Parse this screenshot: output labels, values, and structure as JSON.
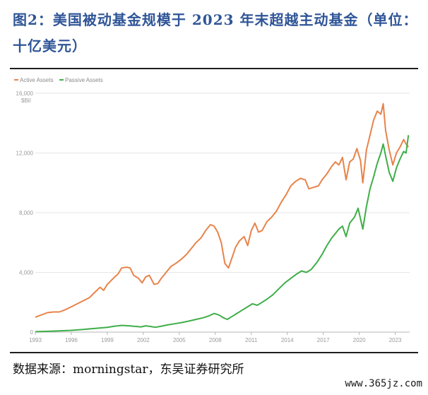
{
  "header": {
    "title": "图2：美国被动基金规模于 2023 年末超越主动基金（单位：十亿美元）"
  },
  "footer": {
    "source": "数据来源：morningstar，东吴证券研究所",
    "watermark": "www.365jz.com"
  },
  "colors": {
    "active": "#e8834a",
    "passive": "#3fae49",
    "title": "#2f5597",
    "axis": "#9a9a9a"
  },
  "chart_data": {
    "type": "line",
    "unit_label": "$Bil",
    "ylim": [
      0,
      16000
    ],
    "yticks": [
      0,
      4000,
      8000,
      12000,
      16000
    ],
    "ytick_labels": [
      "0",
      "4,000",
      "8,000",
      "12,000",
      "16,000"
    ],
    "xlim": [
      1993,
      2024.2
    ],
    "xticks": [
      1993,
      1996,
      1999,
      2002,
      2005,
      2008,
      2011,
      2014,
      2017,
      2020,
      2023
    ],
    "grid": true,
    "legend_position": "top-left",
    "series": [
      {
        "name": "Active Assets",
        "color": "#e8834a",
        "points": [
          [
            1993.0,
            1000
          ],
          [
            1993.5,
            1150
          ],
          [
            1994.0,
            1300
          ],
          [
            1994.5,
            1350
          ],
          [
            1995.0,
            1350
          ],
          [
            1995.5,
            1500
          ],
          [
            1996.0,
            1700
          ],
          [
            1996.5,
            1900
          ],
          [
            1997.0,
            2100
          ],
          [
            1997.5,
            2300
          ],
          [
            1998.0,
            2700
          ],
          [
            1998.4,
            3000
          ],
          [
            1998.7,
            2800
          ],
          [
            1999.0,
            3200
          ],
          [
            1999.5,
            3600
          ],
          [
            1999.9,
            3900
          ],
          [
            2000.2,
            4300
          ],
          [
            2000.6,
            4350
          ],
          [
            2000.9,
            4300
          ],
          [
            2001.2,
            3800
          ],
          [
            2001.6,
            3600
          ],
          [
            2001.9,
            3300
          ],
          [
            2002.2,
            3700
          ],
          [
            2002.5,
            3800
          ],
          [
            2002.9,
            3200
          ],
          [
            2003.2,
            3250
          ],
          [
            2003.5,
            3600
          ],
          [
            2003.9,
            4000
          ],
          [
            2004.3,
            4400
          ],
          [
            2004.7,
            4600
          ],
          [
            2005.2,
            4900
          ],
          [
            2005.6,
            5200
          ],
          [
            2006.0,
            5600
          ],
          [
            2006.4,
            6000
          ],
          [
            2006.8,
            6300
          ],
          [
            2007.2,
            6800
          ],
          [
            2007.6,
            7200
          ],
          [
            2007.9,
            7100
          ],
          [
            2008.2,
            6700
          ],
          [
            2008.5,
            6000
          ],
          [
            2008.8,
            4600
          ],
          [
            2009.1,
            4300
          ],
          [
            2009.4,
            5000
          ],
          [
            2009.7,
            5700
          ],
          [
            2010.0,
            6100
          ],
          [
            2010.4,
            6400
          ],
          [
            2010.7,
            5800
          ],
          [
            2011.0,
            6800
          ],
          [
            2011.3,
            7300
          ],
          [
            2011.6,
            6700
          ],
          [
            2011.9,
            6800
          ],
          [
            2012.3,
            7400
          ],
          [
            2012.7,
            7700
          ],
          [
            2013.1,
            8100
          ],
          [
            2013.5,
            8700
          ],
          [
            2013.9,
            9200
          ],
          [
            2014.3,
            9800
          ],
          [
            2014.7,
            10100
          ],
          [
            2015.1,
            10300
          ],
          [
            2015.5,
            10200
          ],
          [
            2015.8,
            9600
          ],
          [
            2016.2,
            9700
          ],
          [
            2016.6,
            9800
          ],
          [
            2016.9,
            10200
          ],
          [
            2017.3,
            10600
          ],
          [
            2017.7,
            11100
          ],
          [
            2018.0,
            11400
          ],
          [
            2018.3,
            11200
          ],
          [
            2018.6,
            11700
          ],
          [
            2018.9,
            10200
          ],
          [
            2019.2,
            11400
          ],
          [
            2019.5,
            11600
          ],
          [
            2019.8,
            12300
          ],
          [
            2020.1,
            11500
          ],
          [
            2020.3,
            10000
          ],
          [
            2020.6,
            12200
          ],
          [
            2020.9,
            13200
          ],
          [
            2021.2,
            14200
          ],
          [
            2021.5,
            14800
          ],
          [
            2021.8,
            14600
          ],
          [
            2022.0,
            15300
          ],
          [
            2022.2,
            13500
          ],
          [
            2022.5,
            12200
          ],
          [
            2022.8,
            11200
          ],
          [
            2023.1,
            12000
          ],
          [
            2023.4,
            12400
          ],
          [
            2023.7,
            12900
          ],
          [
            2023.9,
            12600
          ],
          [
            2024.1,
            12400
          ]
        ]
      },
      {
        "name": "Passive Assets",
        "color": "#3fae49",
        "points": [
          [
            1993.0,
            30
          ],
          [
            1994.0,
            50
          ],
          [
            1995.0,
            80
          ],
          [
            1996.0,
            120
          ],
          [
            1997.0,
            180
          ],
          [
            1998.0,
            250
          ],
          [
            1999.0,
            320
          ],
          [
            1999.6,
            400
          ],
          [
            2000.2,
            450
          ],
          [
            2000.8,
            420
          ],
          [
            2001.4,
            380
          ],
          [
            2001.8,
            350
          ],
          [
            2002.2,
            420
          ],
          [
            2002.6,
            380
          ],
          [
            2003.0,
            320
          ],
          [
            2003.5,
            400
          ],
          [
            2004.0,
            480
          ],
          [
            2004.6,
            560
          ],
          [
            2005.2,
            640
          ],
          [
            2005.8,
            740
          ],
          [
            2006.4,
            850
          ],
          [
            2007.0,
            960
          ],
          [
            2007.5,
            1100
          ],
          [
            2007.9,
            1250
          ],
          [
            2008.3,
            1150
          ],
          [
            2008.7,
            950
          ],
          [
            2009.0,
            850
          ],
          [
            2009.4,
            1050
          ],
          [
            2009.8,
            1250
          ],
          [
            2010.3,
            1500
          ],
          [
            2010.7,
            1700
          ],
          [
            2011.1,
            1900
          ],
          [
            2011.5,
            1800
          ],
          [
            2011.9,
            2000
          ],
          [
            2012.3,
            2200
          ],
          [
            2012.8,
            2500
          ],
          [
            2013.3,
            2900
          ],
          [
            2013.8,
            3300
          ],
          [
            2014.3,
            3600
          ],
          [
            2014.8,
            3900
          ],
          [
            2015.2,
            4100
          ],
          [
            2015.6,
            4000
          ],
          [
            2016.0,
            4200
          ],
          [
            2016.5,
            4700
          ],
          [
            2016.9,
            5200
          ],
          [
            2017.3,
            5800
          ],
          [
            2017.7,
            6300
          ],
          [
            2018.0,
            6600
          ],
          [
            2018.3,
            6900
          ],
          [
            2018.6,
            7100
          ],
          [
            2018.9,
            6400
          ],
          [
            2019.2,
            7300
          ],
          [
            2019.6,
            7700
          ],
          [
            2019.9,
            8300
          ],
          [
            2020.1,
            7600
          ],
          [
            2020.3,
            6900
          ],
          [
            2020.6,
            8400
          ],
          [
            2020.9,
            9600
          ],
          [
            2021.2,
            10400
          ],
          [
            2021.5,
            11300
          ],
          [
            2021.8,
            12000
          ],
          [
            2022.0,
            12600
          ],
          [
            2022.2,
            11800
          ],
          [
            2022.5,
            10700
          ],
          [
            2022.8,
            10100
          ],
          [
            2023.1,
            11000
          ],
          [
            2023.4,
            11600
          ],
          [
            2023.7,
            12100
          ],
          [
            2023.9,
            12000
          ],
          [
            2024.1,
            13200
          ]
        ]
      }
    ]
  }
}
